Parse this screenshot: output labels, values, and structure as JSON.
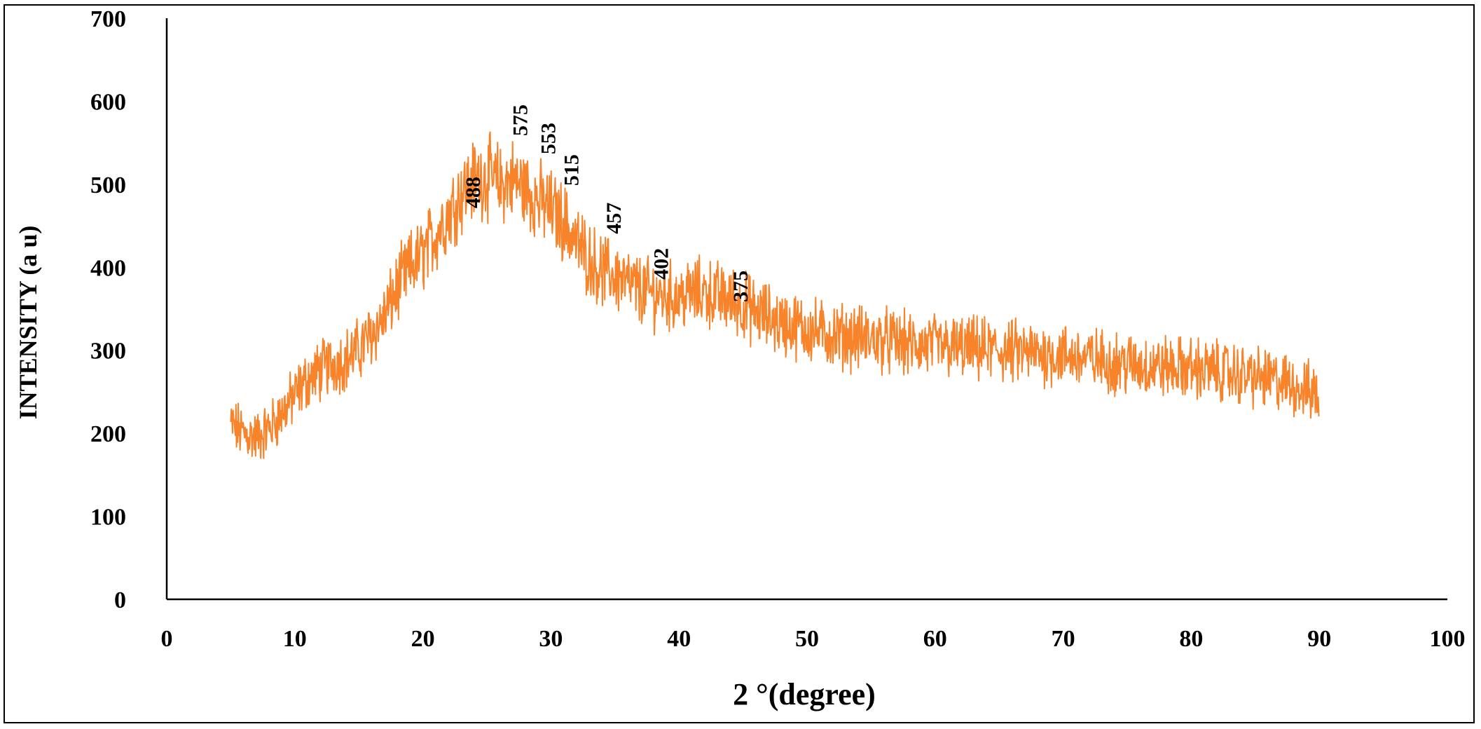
{
  "chart_data": {
    "type": "line",
    "title": "",
    "xlabel": "2 °(degree)",
    "ylabel": "INTENSITY (a u)",
    "xlim": [
      0,
      100
    ],
    "ylim": [
      0,
      700
    ],
    "xticks": [
      0,
      10,
      20,
      30,
      40,
      50,
      60,
      70,
      80,
      90,
      100
    ],
    "yticks": [
      0,
      100,
      200,
      300,
      400,
      500,
      600,
      700
    ],
    "grid": false,
    "legend": "none",
    "line_color": "#F7832A",
    "series": [
      {
        "x": [
          5,
          6,
          7,
          8,
          9,
          10,
          11,
          12,
          13,
          14,
          15,
          16,
          17,
          18,
          19,
          20,
          21,
          22,
          23,
          24,
          25,
          26,
          27,
          28,
          29,
          30,
          31,
          32,
          33,
          34,
          35,
          36,
          37,
          38,
          39,
          40,
          41,
          42,
          43,
          44,
          45,
          46,
          47,
          48,
          49,
          50,
          52,
          54,
          56,
          58,
          60,
          62,
          64,
          66,
          68,
          70,
          72,
          74,
          76,
          78,
          80,
          82,
          84,
          86,
          88,
          90
        ],
        "y": [
          210,
          200,
          195,
          205,
          225,
          245,
          265,
          275,
          285,
          290,
          300,
          320,
          340,
          375,
          400,
          415,
          440,
          465,
          490,
          505,
          510,
          500,
          505,
          495,
          480,
          470,
          455,
          430,
          410,
          395,
          390,
          380,
          372,
          368,
          365,
          365,
          368,
          370,
          365,
          360,
          355,
          345,
          340,
          332,
          330,
          325,
          318,
          315,
          312,
          306,
          305,
          302,
          300,
          298,
          296,
          294,
          290,
          285,
          282,
          280,
          278,
          275,
          270,
          265,
          258,
          245
        ]
      }
    ],
    "peak_labels": [
      {
        "x": 23.9,
        "y": 488,
        "text": "488"
      },
      {
        "x": 27.6,
        "y": 575,
        "text": "575"
      },
      {
        "x": 29.8,
        "y": 553,
        "text": "553"
      },
      {
        "x": 31.6,
        "y": 515,
        "text": "515"
      },
      {
        "x": 34.9,
        "y": 457,
        "text": "457"
      },
      {
        "x": 38.6,
        "y": 402,
        "text": "402"
      },
      {
        "x": 44.8,
        "y": 375,
        "text": "375"
      }
    ]
  }
}
